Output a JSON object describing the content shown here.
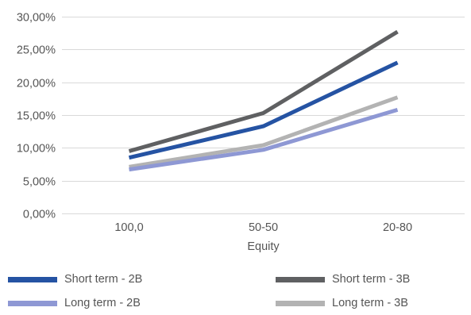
{
  "chart_data": {
    "type": "line",
    "categories": [
      "100,0",
      "50-50",
      "20-80"
    ],
    "xlabel": "Equity",
    "ylabel": "",
    "title": "",
    "ylim": [
      0,
      30
    ],
    "yticks": [
      "0,00%",
      "5,00%",
      "10,00%",
      "15,00%",
      "20,00%",
      "25,00%",
      "30,00%"
    ],
    "grid": "horizontal",
    "legend_position": "bottom",
    "series": [
      {
        "name": "Short term - 2B",
        "color": "#2553a3",
        "values": [
          8.5,
          13.3,
          23.0
        ]
      },
      {
        "name": "Short term - 3B",
        "color": "#5f6062",
        "values": [
          9.5,
          15.3,
          27.7
        ]
      },
      {
        "name": "Long term - 2B",
        "color": "#8e98d4",
        "values": [
          6.7,
          9.7,
          15.8
        ]
      },
      {
        "name": "Long term - 3B",
        "color": "#b3b3b3",
        "values": [
          7.1,
          10.4,
          17.7
        ]
      }
    ]
  }
}
